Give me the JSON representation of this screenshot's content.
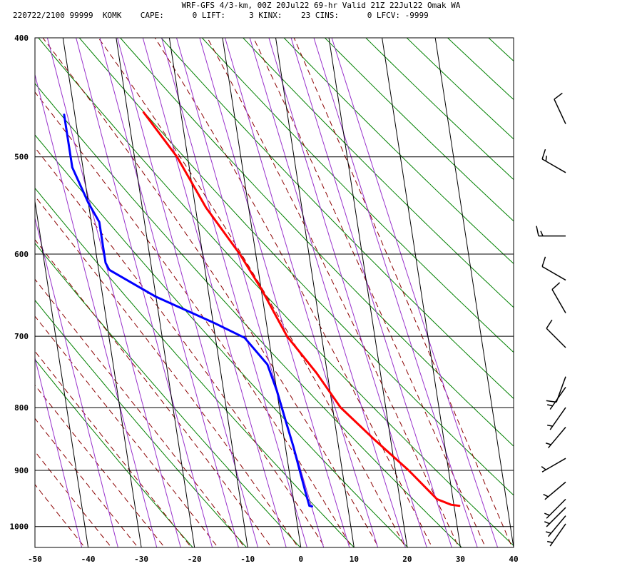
{
  "header": {
    "title": "WRF-GFS 4/3-km, 00Z 20Jul22 69-hr Valid 21Z 22Jul22 Omak WA",
    "stats": "220722/2100 99999  KOMK    CAPE:      0 LIFT:     3 KINX:    23 CINS:      0 LFCV: -9999"
  },
  "chart_data": {
    "type": "line",
    "title": "WRF-GFS 4/3-km, 00Z 20Jul22 69-hr Valid 21Z 22Jul22 Omak WA",
    "xlabel": "",
    "ylabel": "",
    "x_axis": {
      "range": [
        -50,
        40
      ],
      "ticks": [
        -50,
        -40,
        -30,
        -20,
        -10,
        0,
        10,
        20,
        30,
        40
      ]
    },
    "y_axis": {
      "scale": "log-pressure",
      "range": [
        400,
        1040
      ],
      "ticks": [
        400,
        500,
        600,
        700,
        800,
        900,
        1000
      ],
      "inverted": true
    },
    "grid": true,
    "skew_deg_per_decade": 35.5,
    "series": [
      {
        "name": "",
        "color": "#ff0000",
        "points": [
          [
            -17,
            460
          ],
          [
            -12,
            500
          ],
          [
            -8,
            550
          ],
          [
            -3,
            600
          ],
          [
            0,
            640
          ],
          [
            3.5,
            700
          ],
          [
            8,
            750
          ],
          [
            11.5,
            800
          ],
          [
            17,
            850
          ],
          [
            22.5,
            900
          ],
          [
            27,
            950
          ],
          [
            29.5,
            960
          ],
          [
            31,
            962
          ]
        ]
      },
      {
        "name": "",
        "color": "#0000ff",
        "points": [
          [
            -32,
            462
          ],
          [
            -32,
            510
          ],
          [
            -30,
            545
          ],
          [
            -28.5,
            565
          ],
          [
            -28.5,
            610
          ],
          [
            -28,
            618
          ],
          [
            -20,
            650
          ],
          [
            -10,
            682
          ],
          [
            -4.5,
            702
          ],
          [
            -1,
            738
          ],
          [
            0,
            775
          ],
          [
            0.8,
            820
          ],
          [
            1.5,
            860
          ],
          [
            2,
            900
          ],
          [
            2.5,
            940
          ],
          [
            2.8,
            962
          ],
          [
            3.3,
            963
          ]
        ]
      }
    ],
    "wind_barbs": [
      {
        "p": 470,
        "dir": 335,
        "kt": 10
      },
      {
        "p": 515,
        "dir": 300,
        "kt": 15
      },
      {
        "p": 580,
        "dir": 270,
        "kt": 15
      },
      {
        "p": 630,
        "dir": 300,
        "kt": 12
      },
      {
        "p": 670,
        "dir": 330,
        "kt": 10
      },
      {
        "p": 715,
        "dir": 315,
        "kt": 10
      },
      {
        "p": 755,
        "dir": 200,
        "kt": 10
      },
      {
        "p": 770,
        "dir": 215,
        "kt": 5
      },
      {
        "p": 800,
        "dir": 215,
        "kt": 5
      },
      {
        "p": 830,
        "dir": 220,
        "kt": 5
      },
      {
        "p": 880,
        "dir": 240,
        "kt": 5
      },
      {
        "p": 920,
        "dir": 230,
        "kt": 5
      },
      {
        "p": 950,
        "dir": 225,
        "kt": 5
      },
      {
        "p": 965,
        "dir": 225,
        "kt": 5
      },
      {
        "p": 980,
        "dir": 220,
        "kt": 5
      },
      {
        "p": 995,
        "dir": 215,
        "kt": 5
      }
    ],
    "background_lines": {
      "dry_adiabats_color": "#008000",
      "moist_adiabats_color": "#8b0000",
      "mixing_ratio_color": "#9932cc"
    }
  }
}
